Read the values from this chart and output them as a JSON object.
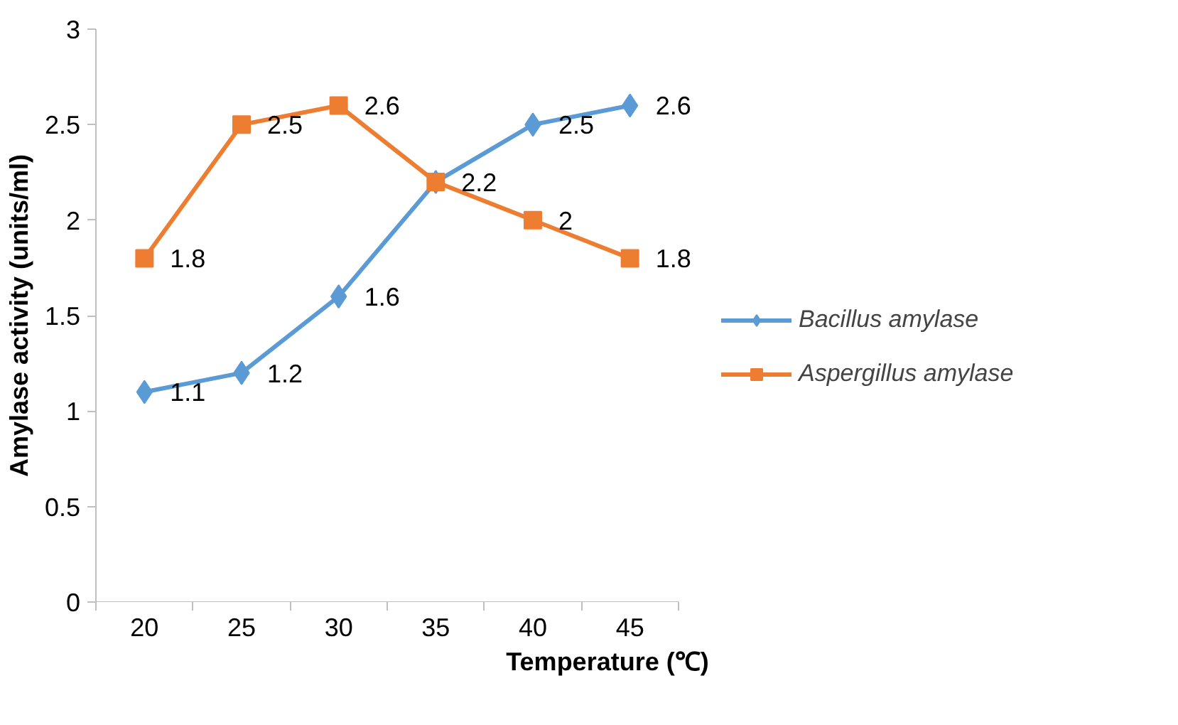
{
  "chart_data": {
    "type": "line",
    "xlabel": "Temperature (℃)",
    "ylabel": "Amylase activity (units/ml)",
    "categories": [
      "20",
      "25",
      "30",
      "35",
      "40",
      "45"
    ],
    "series": [
      {
        "name": "Bacillus amylase",
        "color": "#5b9bd5",
        "marker": "diamond",
        "values": [
          1.1,
          1.2,
          1.6,
          2.2,
          2.5,
          2.6
        ],
        "value_labels": [
          "1.1",
          "1.2",
          "1.6",
          "2.2",
          "2.5",
          "2.6"
        ]
      },
      {
        "name": "Aspergillus amylase",
        "color": "#ed7d31",
        "marker": "square",
        "values": [
          1.8,
          2.5,
          2.6,
          2.2,
          2.0,
          1.8
        ],
        "value_labels": [
          "1.8",
          "2.5",
          "2.6",
          null,
          "2",
          "1.8"
        ]
      }
    ],
    "ylim": [
      0,
      3
    ],
    "yticks": [
      0,
      0.5,
      1,
      1.5,
      2,
      2.5,
      3
    ],
    "grid": false,
    "legend": "right"
  }
}
